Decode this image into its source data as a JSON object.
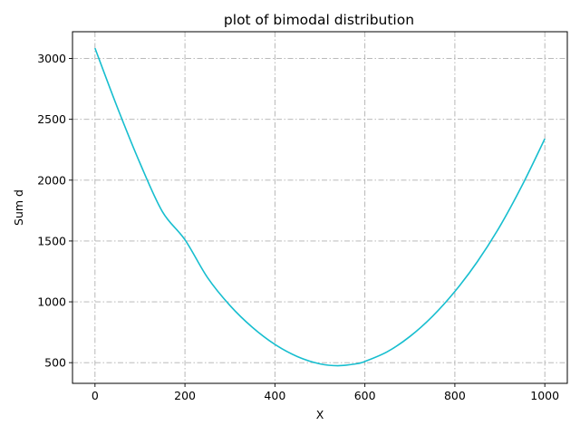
{
  "chart_data": {
    "type": "line",
    "title": "plot of bimodal distribution",
    "xlabel": "X",
    "ylabel": "Sum d",
    "xlim": [
      -50,
      1050
    ],
    "ylim": [
      330,
      3220
    ],
    "x_ticks": [
      0,
      200,
      400,
      600,
      800,
      1000
    ],
    "y_ticks": [
      500,
      1000,
      1500,
      2000,
      2500,
      3000
    ],
    "grid": true,
    "legend": "none",
    "series": [
      {
        "color": "#17becf",
        "x": [
          0,
          50,
          100,
          150,
          200,
          250,
          300,
          350,
          400,
          450,
          500,
          540,
          580,
          600,
          650,
          700,
          750,
          800,
          850,
          900,
          950,
          1000
        ],
        "y": [
          3085,
          2595,
          2140,
          1740,
          1510,
          1200,
          970,
          790,
          650,
          550,
          490,
          475,
          490,
          510,
          590,
          715,
          880,
          1085,
          1330,
          1620,
          1960,
          2340
        ]
      }
    ]
  }
}
